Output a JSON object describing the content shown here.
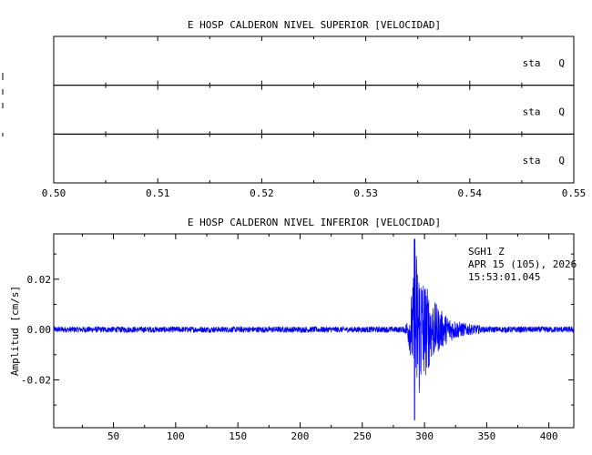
{
  "chart_data": [
    {
      "type": "line",
      "title": "E HOSP CALDERON NIVEL SUPERIOR [VELOCIDAD]",
      "panels": [
        {
          "label": "sta   Q",
          "series": []
        },
        {
          "label": "sta   Q",
          "series": []
        },
        {
          "label": "sta   Q",
          "series": []
        }
      ],
      "xlim": [
        0.5,
        0.55
      ],
      "xticks": [
        "0.50",
        "0.51",
        "0.52",
        "0.53",
        "0.54",
        "0.55"
      ],
      "ylabel": "",
      "grid": false
    },
    {
      "type": "line",
      "title": "E HOSP CALDERON NIVEL INFERIOR [VELOCIDAD]",
      "ylabel": "Amplitud [cm/s]",
      "xlabel": "",
      "xlim": [
        2,
        420
      ],
      "ylim": [
        -0.039,
        0.038
      ],
      "xticks": [
        "50",
        "100",
        "150",
        "200",
        "250",
        "300",
        "350",
        "400"
      ],
      "yticks": [
        "0.02",
        "0.00",
        "-0.02"
      ],
      "annotation": [
        "SGH1    Z",
        "APR 15 (105), 2026",
        "15:53:01.045"
      ],
      "series": [
        {
          "color": "#0000ff",
          "envelope": {
            "noise_amplitude": 0.0012,
            "event_onset": 283,
            "peak_time": 292,
            "peak_max": 0.036,
            "peak_min": -0.036,
            "decay_end": 345
          }
        }
      ],
      "grid": false
    }
  ]
}
